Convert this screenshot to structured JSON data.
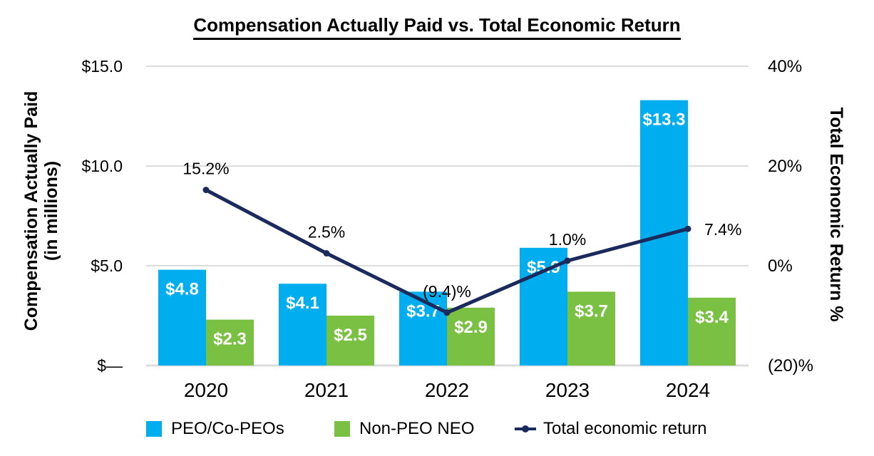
{
  "title": "Compensation Actually Paid vs. Total Economic Return",
  "chart_data": {
    "type": "bar+line combo",
    "title": "Compensation Actually Paid vs. Total Economic Return",
    "categories": [
      "2020",
      "2021",
      "2022",
      "2023",
      "2024"
    ],
    "series": [
      {
        "name": "PEO/Co-PEOs",
        "type": "bar",
        "color": "#00AEEF",
        "values": [
          4.8,
          4.1,
          3.7,
          5.9,
          13.3
        ],
        "labels": [
          "$4.8",
          "$4.1",
          "$3.7",
          "$5.9",
          "$13.3"
        ]
      },
      {
        "name": "Non-PEO NEO",
        "type": "bar",
        "color": "#7AC143",
        "values": [
          2.3,
          2.5,
          2.9,
          3.7,
          3.4
        ],
        "labels": [
          "$2.3",
          "$2.5",
          "$2.9",
          "$3.7",
          "$3.4"
        ]
      },
      {
        "name": "Total economic return",
        "type": "line",
        "color": "#1B2A5C",
        "values": [
          15.2,
          2.5,
          -9.4,
          1.0,
          7.4
        ],
        "labels": [
          "15.2%",
          "2.5%",
          "(9.4)%",
          "1.0%",
          "7.4%"
        ]
      }
    ],
    "left_axis": {
      "title": "Compensation Actually Paid (in millions)",
      "title_lines": [
        "Compensation Actually Paid",
        "(in millions)"
      ],
      "ticks": [
        "$15.0",
        "$10.0",
        "$5.0",
        "$—"
      ],
      "range": [
        0,
        15
      ]
    },
    "right_axis": {
      "title": "Total Economic Return %",
      "ticks": [
        "40%",
        "20%",
        "0%",
        "(20)%"
      ],
      "range": [
        -20,
        40
      ]
    },
    "grid": true,
    "grid_color": "#DCDCDC",
    "legend_position": "bottom",
    "bar_label_color": "#FFFFFF",
    "text_color": "#000000"
  }
}
